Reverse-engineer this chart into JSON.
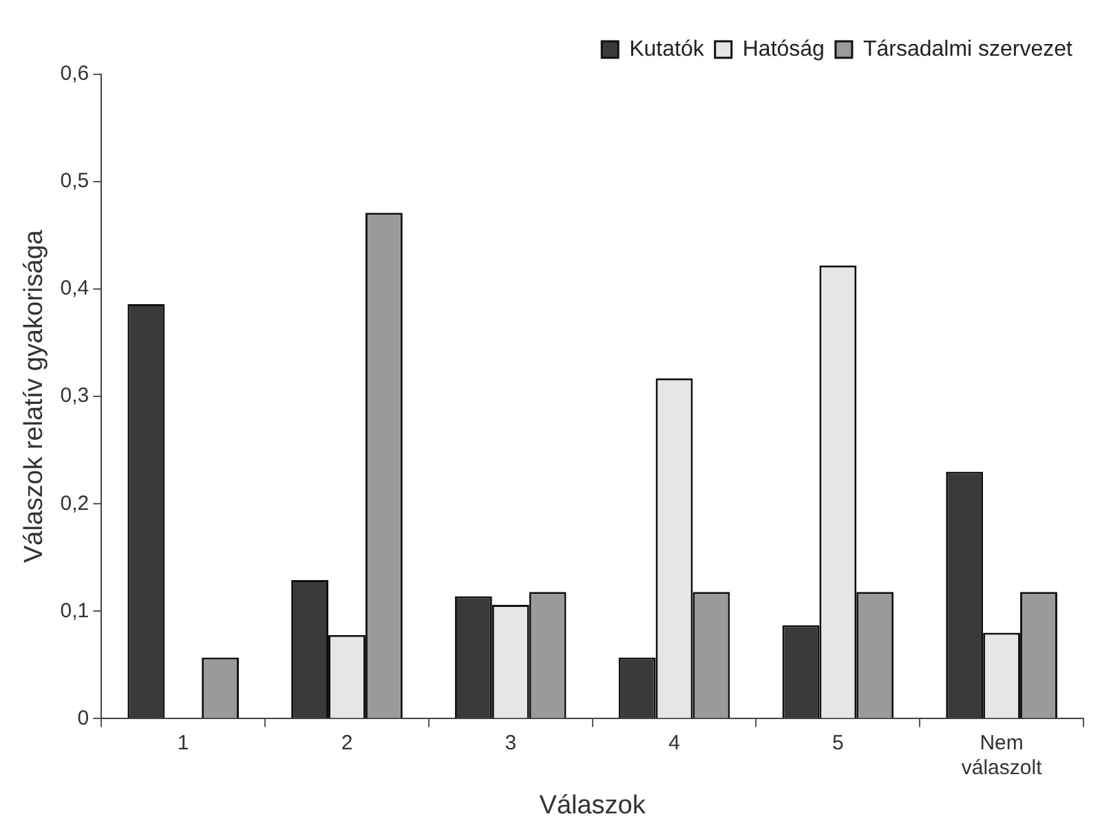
{
  "chart_data": {
    "type": "bar",
    "xlabel": "Válaszok",
    "ylabel": "Válaszok relatív gyakorisága",
    "categories": [
      "1",
      "2",
      "3",
      "4",
      "5",
      "Nem válaszolt"
    ],
    "series": [
      {
        "name": "Kutatók",
        "color": "#3a3a3a",
        "values": [
          0.386,
          0.129,
          0.114,
          0.057,
          0.087,
          0.23
        ]
      },
      {
        "name": "Hatóság",
        "color": "#e6e6e6",
        "values": [
          null,
          0.078,
          0.106,
          0.317,
          0.422,
          0.08
        ]
      },
      {
        "name": "Társadalmi szervezet",
        "color": "#9a9a9a",
        "values": [
          0.057,
          0.471,
          0.118,
          0.118,
          0.118,
          0.118
        ]
      }
    ],
    "ylim": [
      0,
      0.6
    ],
    "yticks": [
      0,
      {
        "value": 0.1,
        "label": "0,1"
      },
      {
        "value": 0.2,
        "label": "0,2"
      },
      {
        "value": 0.3,
        "label": "0,3"
      },
      {
        "value": 0.4,
        "label": "0,4"
      },
      {
        "value": 0.5,
        "label": "0,5"
      },
      {
        "value": 0.6,
        "label": "0,6"
      }
    ],
    "grid": false,
    "legend": "top right"
  }
}
